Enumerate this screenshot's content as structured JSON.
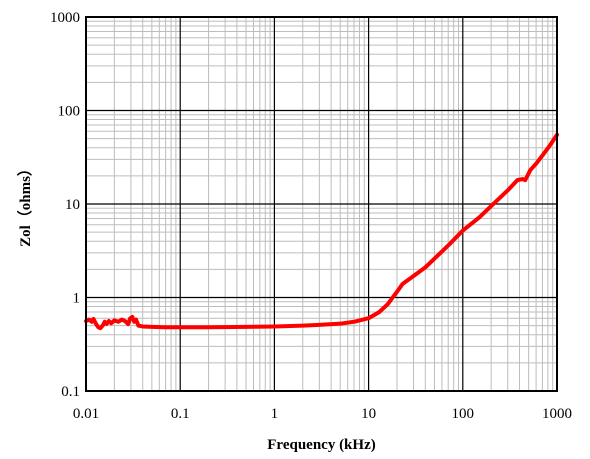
{
  "chart_data": {
    "type": "line",
    "xlabel": "Frequency (kHz)",
    "ylabel": "Zol（ohms）",
    "x_scale": "log",
    "y_scale": "log",
    "xlim": [
      0.01,
      1000
    ],
    "ylim": [
      0.1,
      1000
    ],
    "x_ticks": [
      {
        "value": 0.01,
        "label": "0.01"
      },
      {
        "value": 0.1,
        "label": "0.1"
      },
      {
        "value": 1,
        "label": "1"
      },
      {
        "value": 10,
        "label": "10"
      },
      {
        "value": 100,
        "label": "100"
      },
      {
        "value": 1000,
        "label": "1000"
      }
    ],
    "y_ticks": [
      {
        "value": 0.1,
        "label": "0.1"
      },
      {
        "value": 1,
        "label": "1"
      },
      {
        "value": 10,
        "label": "10"
      },
      {
        "value": 100,
        "label": "100"
      },
      {
        "value": 1000,
        "label": "1000"
      }
    ],
    "grid": true,
    "series": [
      {
        "color": "#ff0000",
        "points": [
          [
            0.01,
            0.56
          ],
          [
            0.0108,
            0.58
          ],
          [
            0.0115,
            0.55
          ],
          [
            0.012,
            0.59
          ],
          [
            0.0128,
            0.52
          ],
          [
            0.0135,
            0.48
          ],
          [
            0.0142,
            0.47
          ],
          [
            0.015,
            0.5
          ],
          [
            0.0158,
            0.55
          ],
          [
            0.0165,
            0.52
          ],
          [
            0.0175,
            0.56
          ],
          [
            0.0185,
            0.53
          ],
          [
            0.02,
            0.57
          ],
          [
            0.022,
            0.55
          ],
          [
            0.024,
            0.58
          ],
          [
            0.026,
            0.56
          ],
          [
            0.028,
            0.52
          ],
          [
            0.0295,
            0.6
          ],
          [
            0.031,
            0.62
          ],
          [
            0.0325,
            0.55
          ],
          [
            0.034,
            0.58
          ],
          [
            0.036,
            0.5
          ],
          [
            0.04,
            0.49
          ],
          [
            0.05,
            0.485
          ],
          [
            0.07,
            0.48
          ],
          [
            0.1,
            0.48
          ],
          [
            0.2,
            0.48
          ],
          [
            0.5,
            0.485
          ],
          [
            1,
            0.49
          ],
          [
            2,
            0.5
          ],
          [
            3,
            0.51
          ],
          [
            5,
            0.525
          ],
          [
            7,
            0.55
          ],
          [
            10,
            0.6
          ],
          [
            13,
            0.7
          ],
          [
            16,
            0.85
          ],
          [
            18,
            1.0
          ],
          [
            20,
            1.15
          ],
          [
            23,
            1.4
          ],
          [
            30,
            1.7
          ],
          [
            40,
            2.1
          ],
          [
            50,
            2.6
          ],
          [
            70,
            3.6
          ],
          [
            100,
            5.2
          ],
          [
            150,
            7.2
          ],
          [
            200,
            9.5
          ],
          [
            300,
            14
          ],
          [
            380,
            18
          ],
          [
            430,
            18.5
          ],
          [
            460,
            18
          ],
          [
            520,
            23
          ],
          [
            600,
            27
          ],
          [
            700,
            33
          ],
          [
            850,
            43
          ],
          [
            1000,
            55
          ]
        ]
      }
    ]
  }
}
